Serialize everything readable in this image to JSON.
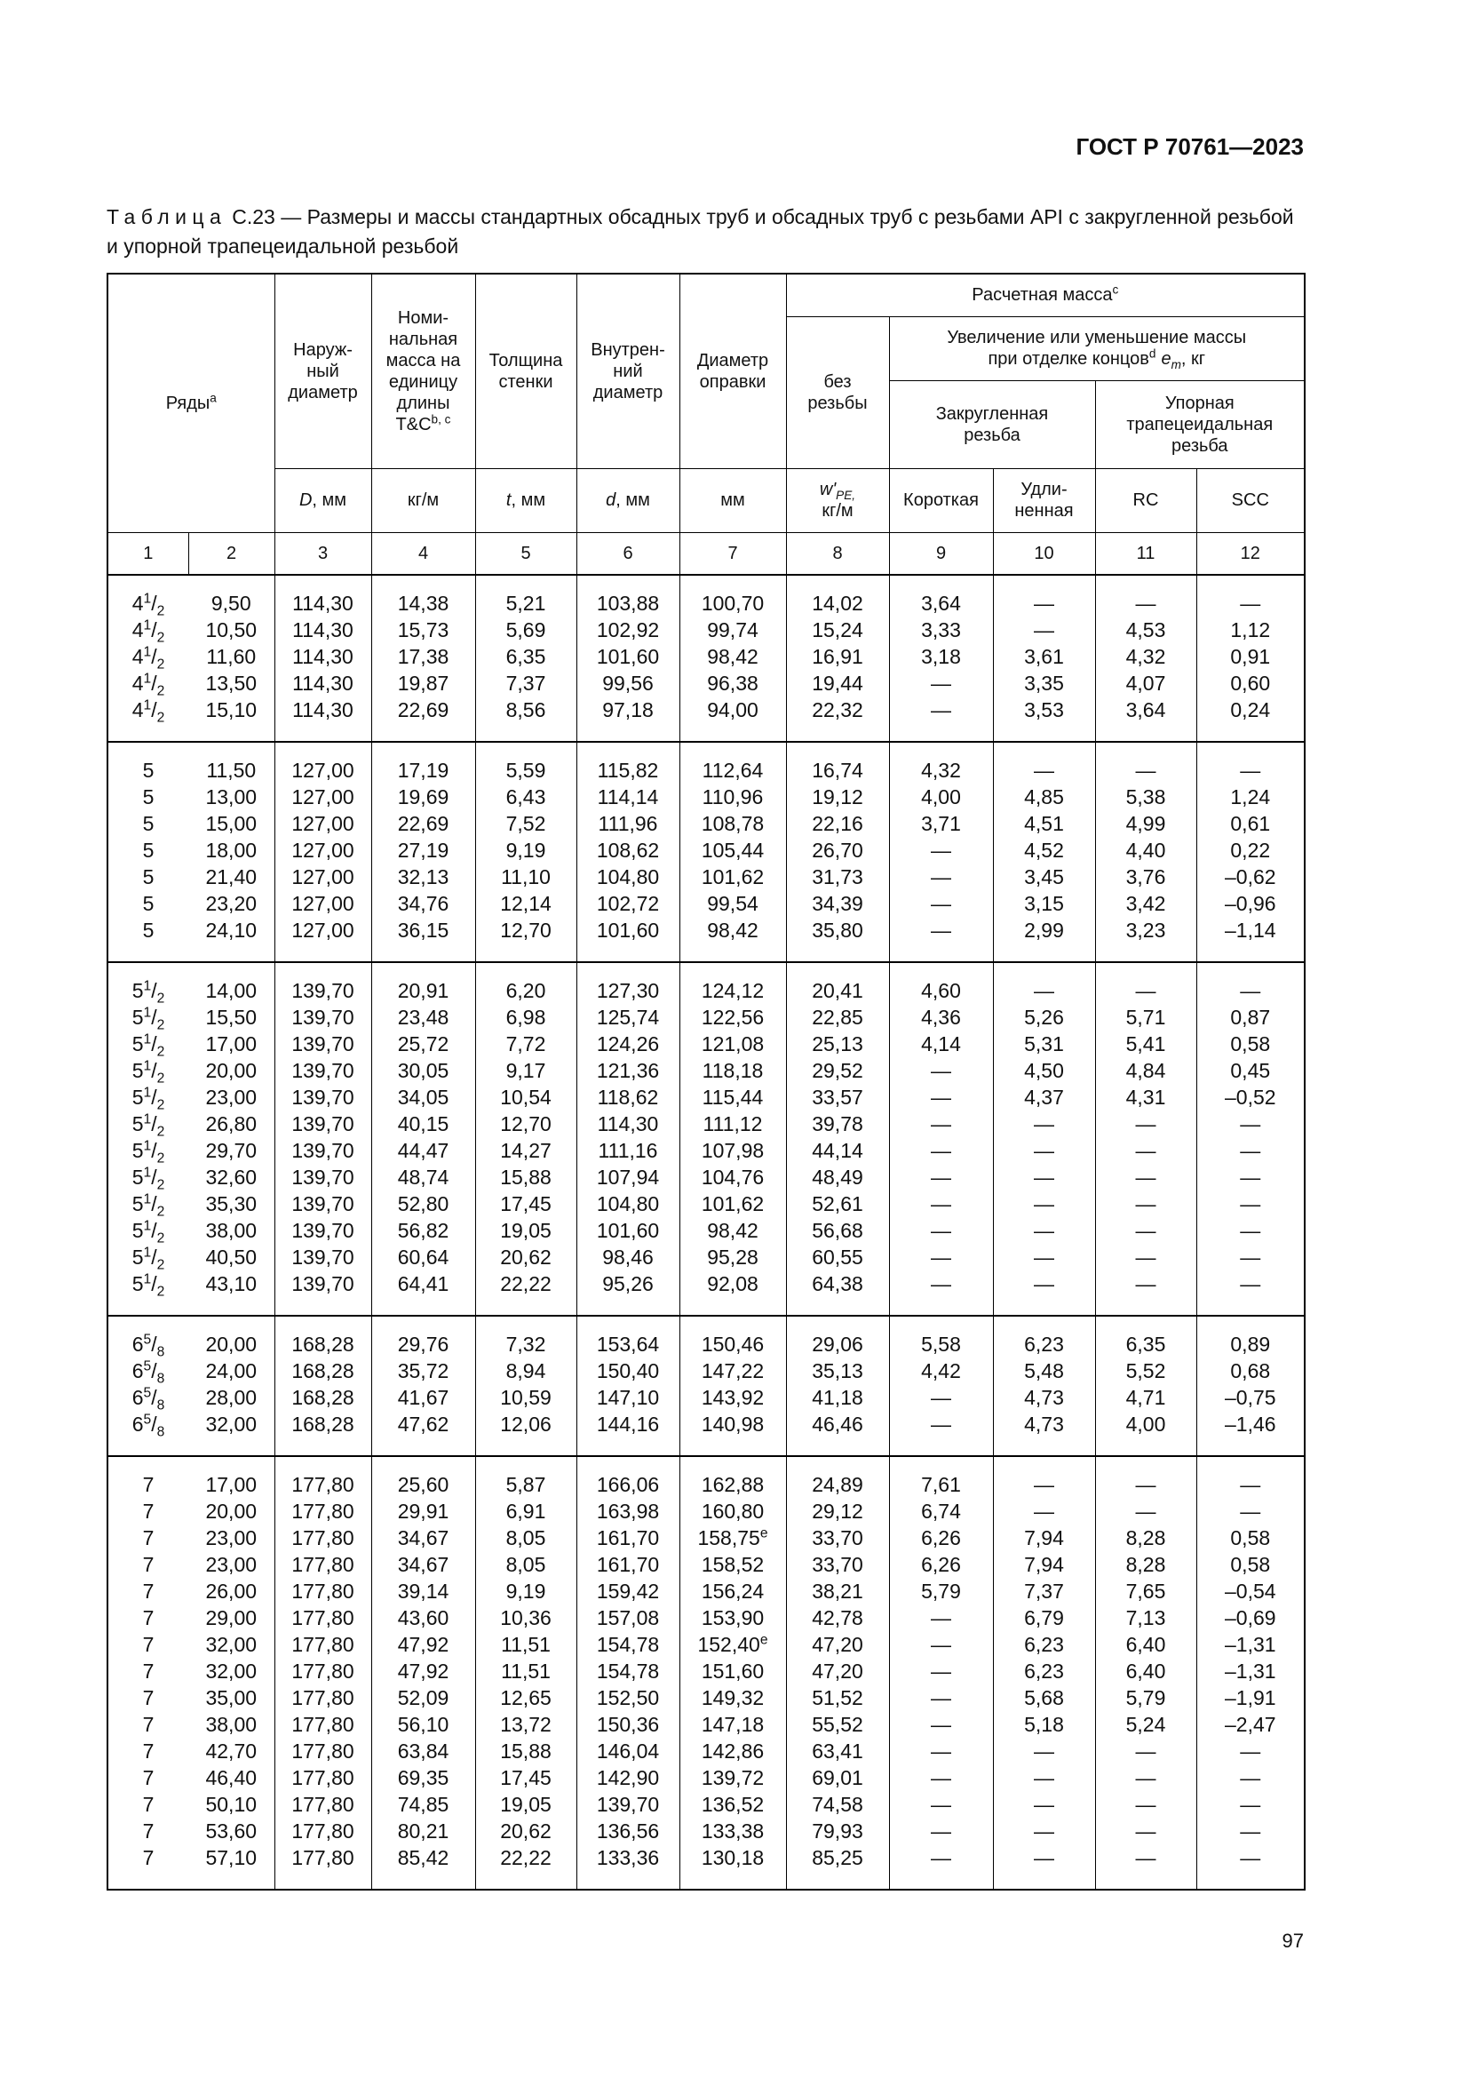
{
  "page_header": "ГОСТ Р 70761—2023",
  "caption": {
    "label": "Таблица",
    "text": "С.23 — Размеры и массы стандартных обсадных труб и обсадных труб с резьбами API с закругленной резьбой и упорной трапецеидальной резьбой"
  },
  "table": {
    "header": {
      "series": [
        {
          "text": "Ряды"
        },
        {
          "sup": "a"
        }
      ],
      "outer_diameter": "Наруж-\nный\nдиаметр",
      "nominal_mass": [
        {
          "text": "Номи-\nнальная\nмасса на\nединицу\nдлины\nT&C"
        },
        {
          "sup": "b, c"
        }
      ],
      "wall_thickness": "Толщина\nстенки",
      "inner_diameter": "Внутрен-\nний\nдиаметр",
      "drift_diameter": "Диаметр\nоправки",
      "calculated_mass": [
        {
          "text": "Расчетная масса"
        },
        {
          "sup": "c"
        }
      ],
      "plain_end": "без\nрезьбы",
      "mass_change": [
        {
          "text": "Увеличение или уменьшение массы\nпри отделке концов"
        },
        {
          "sup": "d"
        },
        {
          "italic": "e"
        },
        {
          "italic_sub": "m"
        },
        {
          "text": ", кг"
        }
      ],
      "round_thread": "Закругленная\nрезьба",
      "buttress_thread": "Упорная\nтрапецеидальная\nрезьба",
      "units": [
        [
          {
            "italic": "D"
          },
          {
            "text": ", мм"
          }
        ],
        "кг/м",
        [
          {
            "italic": "t"
          },
          {
            "text": ", мм"
          }
        ],
        [
          {
            "italic": "d"
          },
          {
            "text": ", мм"
          }
        ],
        "мм",
        [
          {
            "italic": "w'"
          },
          {
            "italic_sub": "PE,"
          },
          {
            "text": "\nкг/м"
          }
        ],
        "Короткая",
        "Удли-\nненная",
        "RC",
        "SCC"
      ]
    },
    "column_numbers": [
      1,
      2,
      3,
      4,
      5,
      6,
      7,
      8,
      9,
      10,
      11,
      12
    ],
    "groups": [
      [
        [
          [
            {
              "text": "4"
            },
            {
              "sup": "1"
            },
            {
              "text": "/"
            },
            {
              "sub": "2"
            }
          ],
          "9,50",
          "114,30",
          "14,38",
          "5,21",
          "103,88",
          "100,70",
          "14,02",
          "3,64",
          "—",
          "—",
          "—"
        ],
        [
          [
            {
              "text": "4"
            },
            {
              "sup": "1"
            },
            {
              "text": "/"
            },
            {
              "sub": "2"
            }
          ],
          "10,50",
          "114,30",
          "15,73",
          "5,69",
          "102,92",
          "99,74",
          "15,24",
          "3,33",
          "—",
          "4,53",
          "1,12"
        ],
        [
          [
            {
              "text": "4"
            },
            {
              "sup": "1"
            },
            {
              "text": "/"
            },
            {
              "sub": "2"
            }
          ],
          "11,60",
          "114,30",
          "17,38",
          "6,35",
          "101,60",
          "98,42",
          "16,91",
          "3,18",
          "3,61",
          "4,32",
          "0,91"
        ],
        [
          [
            {
              "text": "4"
            },
            {
              "sup": "1"
            },
            {
              "text": "/"
            },
            {
              "sub": "2"
            }
          ],
          "13,50",
          "114,30",
          "19,87",
          "7,37",
          "99,56",
          "96,38",
          "19,44",
          "—",
          "3,35",
          "4,07",
          "0,60"
        ],
        [
          [
            {
              "text": "4"
            },
            {
              "sup": "1"
            },
            {
              "text": "/"
            },
            {
              "sub": "2"
            }
          ],
          "15,10",
          "114,30",
          "22,69",
          "8,56",
          "97,18",
          "94,00",
          "22,32",
          "—",
          "3,53",
          "3,64",
          "0,24"
        ]
      ],
      [
        [
          "5",
          "11,50",
          "127,00",
          "17,19",
          "5,59",
          "115,82",
          "112,64",
          "16,74",
          "4,32",
          "—",
          "—",
          "—"
        ],
        [
          "5",
          "13,00",
          "127,00",
          "19,69",
          "6,43",
          "114,14",
          "110,96",
          "19,12",
          "4,00",
          "4,85",
          "5,38",
          "1,24"
        ],
        [
          "5",
          "15,00",
          "127,00",
          "22,69",
          "7,52",
          "111,96",
          "108,78",
          "22,16",
          "3,71",
          "4,51",
          "4,99",
          "0,61"
        ],
        [
          "5",
          "18,00",
          "127,00",
          "27,19",
          "9,19",
          "108,62",
          "105,44",
          "26,70",
          "—",
          "4,52",
          "4,40",
          "0,22"
        ],
        [
          "5",
          "21,40",
          "127,00",
          "32,13",
          "11,10",
          "104,80",
          "101,62",
          "31,73",
          "—",
          "3,45",
          "3,76",
          "–0,62"
        ],
        [
          "5",
          "23,20",
          "127,00",
          "34,76",
          "12,14",
          "102,72",
          "99,54",
          "34,39",
          "—",
          "3,15",
          "3,42",
          "–0,96"
        ],
        [
          "5",
          "24,10",
          "127,00",
          "36,15",
          "12,70",
          "101,60",
          "98,42",
          "35,80",
          "—",
          "2,99",
          "3,23",
          "–1,14"
        ]
      ],
      [
        [
          [
            {
              "text": "5"
            },
            {
              "sup": "1"
            },
            {
              "text": "/"
            },
            {
              "sub": "2"
            }
          ],
          "14,00",
          "139,70",
          "20,91",
          "6,20",
          "127,30",
          "124,12",
          "20,41",
          "4,60",
          "—",
          "—",
          "—"
        ],
        [
          [
            {
              "text": "5"
            },
            {
              "sup": "1"
            },
            {
              "text": "/"
            },
            {
              "sub": "2"
            }
          ],
          "15,50",
          "139,70",
          "23,48",
          "6,98",
          "125,74",
          "122,56",
          "22,85",
          "4,36",
          "5,26",
          "5,71",
          "0,87"
        ],
        [
          [
            {
              "text": "5"
            },
            {
              "sup": "1"
            },
            {
              "text": "/"
            },
            {
              "sub": "2"
            }
          ],
          "17,00",
          "139,70",
          "25,72",
          "7,72",
          "124,26",
          "121,08",
          "25,13",
          "4,14",
          "5,31",
          "5,41",
          "0,58"
        ],
        [
          [
            {
              "text": "5"
            },
            {
              "sup": "1"
            },
            {
              "text": "/"
            },
            {
              "sub": "2"
            }
          ],
          "20,00",
          "139,70",
          "30,05",
          "9,17",
          "121,36",
          "118,18",
          "29,52",
          "—",
          "4,50",
          "4,84",
          "0,45"
        ],
        [
          [
            {
              "text": "5"
            },
            {
              "sup": "1"
            },
            {
              "text": "/"
            },
            {
              "sub": "2"
            }
          ],
          "23,00",
          "139,70",
          "34,05",
          "10,54",
          "118,62",
          "115,44",
          "33,57",
          "—",
          "4,37",
          "4,31",
          "–0,52"
        ],
        [
          [
            {
              "text": "5"
            },
            {
              "sup": "1"
            },
            {
              "text": "/"
            },
            {
              "sub": "2"
            }
          ],
          "26,80",
          "139,70",
          "40,15",
          "12,70",
          "114,30",
          "111,12",
          "39,78",
          "—",
          "—",
          "—",
          "—"
        ],
        [
          [
            {
              "text": "5"
            },
            {
              "sup": "1"
            },
            {
              "text": "/"
            },
            {
              "sub": "2"
            }
          ],
          "29,70",
          "139,70",
          "44,47",
          "14,27",
          "111,16",
          "107,98",
          "44,14",
          "—",
          "—",
          "—",
          "—"
        ],
        [
          [
            {
              "text": "5"
            },
            {
              "sup": "1"
            },
            {
              "text": "/"
            },
            {
              "sub": "2"
            }
          ],
          "32,60",
          "139,70",
          "48,74",
          "15,88",
          "107,94",
          "104,76",
          "48,49",
          "—",
          "—",
          "—",
          "—"
        ],
        [
          [
            {
              "text": "5"
            },
            {
              "sup": "1"
            },
            {
              "text": "/"
            },
            {
              "sub": "2"
            }
          ],
          "35,30",
          "139,70",
          "52,80",
          "17,45",
          "104,80",
          "101,62",
          "52,61",
          "—",
          "—",
          "—",
          "—"
        ],
        [
          [
            {
              "text": "5"
            },
            {
              "sup": "1"
            },
            {
              "text": "/"
            },
            {
              "sub": "2"
            }
          ],
          "38,00",
          "139,70",
          "56,82",
          "19,05",
          "101,60",
          "98,42",
          "56,68",
          "—",
          "—",
          "—",
          "—"
        ],
        [
          [
            {
              "text": "5"
            },
            {
              "sup": "1"
            },
            {
              "text": "/"
            },
            {
              "sub": "2"
            }
          ],
          "40,50",
          "139,70",
          "60,64",
          "20,62",
          "98,46",
          "95,28",
          "60,55",
          "—",
          "—",
          "—",
          "—"
        ],
        [
          [
            {
              "text": "5"
            },
            {
              "sup": "1"
            },
            {
              "text": "/"
            },
            {
              "sub": "2"
            }
          ],
          "43,10",
          "139,70",
          "64,41",
          "22,22",
          "95,26",
          "92,08",
          "64,38",
          "—",
          "—",
          "—",
          "—"
        ]
      ],
      [
        [
          [
            {
              "text": "6"
            },
            {
              "sup": "5"
            },
            {
              "text": "/"
            },
            {
              "sub": "8"
            }
          ],
          "20,00",
          "168,28",
          "29,76",
          "7,32",
          "153,64",
          "150,46",
          "29,06",
          "5,58",
          "6,23",
          "6,35",
          "0,89"
        ],
        [
          [
            {
              "text": "6"
            },
            {
              "sup": "5"
            },
            {
              "text": "/"
            },
            {
              "sub": "8"
            }
          ],
          "24,00",
          "168,28",
          "35,72",
          "8,94",
          "150,40",
          "147,22",
          "35,13",
          "4,42",
          "5,48",
          "5,52",
          "0,68"
        ],
        [
          [
            {
              "text": "6"
            },
            {
              "sup": "5"
            },
            {
              "text": "/"
            },
            {
              "sub": "8"
            }
          ],
          "28,00",
          "168,28",
          "41,67",
          "10,59",
          "147,10",
          "143,92",
          "41,18",
          "—",
          "4,73",
          "4,71",
          "–0,75"
        ],
        [
          [
            {
              "text": "6"
            },
            {
              "sup": "5"
            },
            {
              "text": "/"
            },
            {
              "sub": "8"
            }
          ],
          "32,00",
          "168,28",
          "47,62",
          "12,06",
          "144,16",
          "140,98",
          "46,46",
          "—",
          "4,73",
          "4,00",
          "–1,46"
        ]
      ],
      [
        [
          "7",
          "17,00",
          "177,80",
          "25,60",
          "5,87",
          "166,06",
          "162,88",
          "24,89",
          "7,61",
          "—",
          "—",
          "—"
        ],
        [
          "7",
          "20,00",
          "177,80",
          "29,91",
          "6,91",
          "163,98",
          "160,80",
          "29,12",
          "6,74",
          "—",
          "—",
          "—"
        ],
        [
          "7",
          "23,00",
          "177,80",
          "34,67",
          "8,05",
          "161,70",
          [
            {
              "text": "158,75"
            },
            {
              "sup": "e"
            }
          ],
          "33,70",
          "6,26",
          "7,94",
          "8,28",
          "0,58"
        ],
        [
          "7",
          "23,00",
          "177,80",
          "34,67",
          "8,05",
          "161,70",
          "158,52",
          "33,70",
          "6,26",
          "7,94",
          "8,28",
          "0,58"
        ],
        [
          "7",
          "26,00",
          "177,80",
          "39,14",
          "9,19",
          "159,42",
          "156,24",
          "38,21",
          "5,79",
          "7,37",
          "7,65",
          "–0,54"
        ],
        [
          "7",
          "29,00",
          "177,80",
          "43,60",
          "10,36",
          "157,08",
          "153,90",
          "42,78",
          "—",
          "6,79",
          "7,13",
          "–0,69"
        ],
        [
          "7",
          "32,00",
          "177,80",
          "47,92",
          "11,51",
          "154,78",
          [
            {
              "text": "152,40"
            },
            {
              "sup": "e"
            }
          ],
          "47,20",
          "—",
          "6,23",
          "6,40",
          "–1,31"
        ],
        [
          "7",
          "32,00",
          "177,80",
          "47,92",
          "11,51",
          "154,78",
          "151,60",
          "47,20",
          "—",
          "6,23",
          "6,40",
          "–1,31"
        ],
        [
          "7",
          "35,00",
          "177,80",
          "52,09",
          "12,65",
          "152,50",
          "149,32",
          "51,52",
          "—",
          "5,68",
          "5,79",
          "–1,91"
        ],
        [
          "7",
          "38,00",
          "177,80",
          "56,10",
          "13,72",
          "150,36",
          "147,18",
          "55,52",
          "—",
          "5,18",
          "5,24",
          "–2,47"
        ],
        [
          "7",
          "42,70",
          "177,80",
          "63,84",
          "15,88",
          "146,04",
          "142,86",
          "63,41",
          "—",
          "—",
          "—",
          "—"
        ],
        [
          "7",
          "46,40",
          "177,80",
          "69,35",
          "17,45",
          "142,90",
          "139,72",
          "69,01",
          "—",
          "—",
          "—",
          "—"
        ],
        [
          "7",
          "50,10",
          "177,80",
          "74,85",
          "19,05",
          "139,70",
          "136,52",
          "74,58",
          "—",
          "—",
          "—",
          "—"
        ],
        [
          "7",
          "53,60",
          "177,80",
          "80,21",
          "20,62",
          "136,56",
          "133,38",
          "79,93",
          "—",
          "—",
          "—",
          "—"
        ],
        [
          "7",
          "57,10",
          "177,80",
          "85,42",
          "22,22",
          "133,36",
          "130,18",
          "85,25",
          "—",
          "—",
          "—",
          "—"
        ]
      ]
    ]
  },
  "page_number": "97"
}
